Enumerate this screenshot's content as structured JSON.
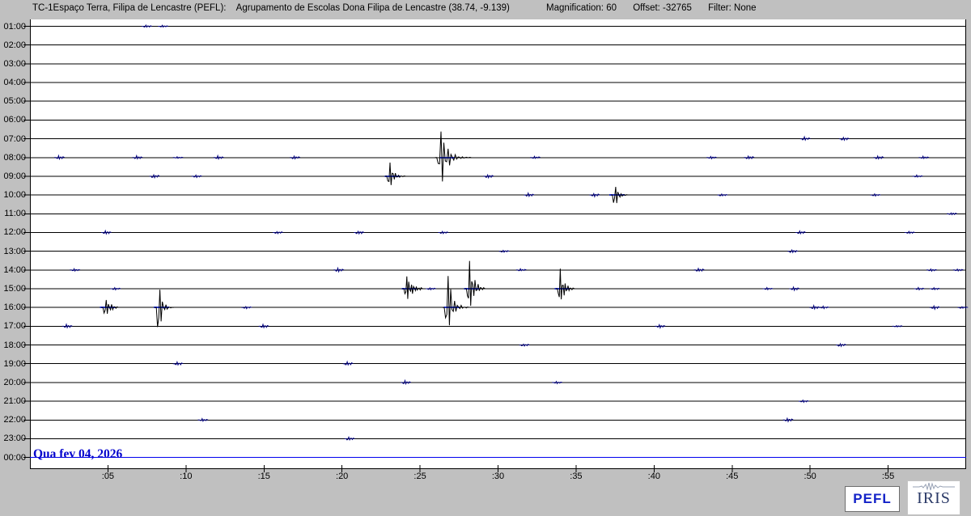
{
  "header": {
    "station": "TC-1Espaço Terra, Filipa de Lencastre (PEFL):",
    "location": "Agrupamento de Escolas Dona Filipa de Lencastre (38.74, -9.139)",
    "magnification": "Magnification: 60",
    "offset": "Offset: -32765",
    "filter": "Filter: None"
  },
  "footer": {
    "date": "Qua fev 04, 2026",
    "pefl": "PEFL",
    "iris": "IRIS"
  },
  "colors": {
    "background": "#c0c0c0",
    "plot_background": "#ffffff",
    "axis": "#000000",
    "trace": "#000000",
    "noise": "#000080",
    "active_row": "#0000ee",
    "event_marker": "#2233cc",
    "date_text": "#0000cc",
    "pefl_text": "#1322c8",
    "iris_text": "#2b3a67"
  },
  "chart_data": {
    "type": "helicorder",
    "minutes_per_row": 60,
    "hours": [
      "01:00",
      "02:00",
      "03:00",
      "04:00",
      "05:00",
      "06:00",
      "07:00",
      "08:00",
      "09:00",
      "10:00",
      "11:00",
      "12:00",
      "13:00",
      "14:00",
      "15:00",
      "16:00",
      "17:00",
      "18:00",
      "19:00",
      "20:00",
      "21:00",
      "22:00",
      "23:00",
      "00:00"
    ],
    "x_tick_labels": [
      ":05",
      ":10",
      ":15",
      ":20",
      ":25",
      ":30",
      ":35",
      ":40",
      ":45",
      ":50",
      ":55"
    ],
    "active_row_index": 23,
    "events": [
      {
        "hour": "08:00",
        "row": 7,
        "minute": 26.7,
        "duration_min": 2.1,
        "amp_up": 46,
        "amp_down": 44,
        "cycles": 9,
        "decay": 5.5,
        "marker": true
      },
      {
        "hour": "09:00",
        "row": 8,
        "minute": 23.2,
        "duration_min": 1.1,
        "amp_up": 25,
        "amp_down": 22,
        "cycles": 6,
        "decay": 4.5,
        "marker": true
      },
      {
        "hour": "10:00",
        "row": 9,
        "minute": 37.6,
        "duration_min": 0.9,
        "amp_up": 19,
        "amp_down": 23,
        "cycles": 5,
        "decay": 4.5,
        "marker": true
      },
      {
        "hour": "15:00",
        "row": 14,
        "minute": 24.3,
        "duration_min": 1.1,
        "amp_up": 21,
        "amp_down": 19,
        "cycles": 7,
        "decay": 3.2,
        "marker": true
      },
      {
        "hour": "15:00",
        "row": 14,
        "minute": 28.3,
        "duration_min": 1.1,
        "amp_up": 50,
        "amp_down": 34,
        "cycles": 6,
        "decay": 3.8,
        "marker": true
      },
      {
        "hour": "15:00",
        "row": 14,
        "minute": 34.1,
        "duration_min": 1.0,
        "amp_up": 31,
        "amp_down": 30,
        "cycles": 6,
        "decay": 3.8,
        "marker": true
      },
      {
        "hour": "16:00",
        "row": 15,
        "minute": 4.95,
        "duration_min": 0.9,
        "amp_up": 23,
        "amp_down": 21,
        "cycles": 5,
        "decay": 3.5,
        "marker": true
      },
      {
        "hour": "16:00",
        "row": 15,
        "minute": 8.4,
        "duration_min": 1.0,
        "amp_up": 63,
        "amp_down": 71,
        "cycles": 5,
        "decay": 6,
        "marker": true
      },
      {
        "hour": "16:00",
        "row": 15,
        "minute": 27.0,
        "duration_min": 1.5,
        "amp_up": 74,
        "amp_down": 50,
        "cycles": 7,
        "decay": 5.5,
        "marker": true
      }
    ],
    "noise": [
      {
        "row": 0,
        "minute": 7.4,
        "amp": 2
      },
      {
        "row": 0,
        "minute": 8.45,
        "amp": 1.5
      },
      {
        "row": 6,
        "minute": 49.6,
        "amp": 3
      },
      {
        "row": 6,
        "minute": 52.1,
        "amp": 3
      },
      {
        "row": 7,
        "minute": 1.8,
        "amp": 3
      },
      {
        "row": 7,
        "minute": 6.8,
        "amp": 3
      },
      {
        "row": 7,
        "minute": 9.4,
        "amp": 1.5
      },
      {
        "row": 7,
        "minute": 12.0,
        "amp": 3
      },
      {
        "row": 7,
        "minute": 16.9,
        "amp": 3
      },
      {
        "row": 7,
        "minute": 32.3,
        "amp": 2
      },
      {
        "row": 7,
        "minute": 43.6,
        "amp": 2
      },
      {
        "row": 7,
        "minute": 46.0,
        "amp": 3
      },
      {
        "row": 7,
        "minute": 54.3,
        "amp": 3
      },
      {
        "row": 7,
        "minute": 57.2,
        "amp": 2
      },
      {
        "row": 8,
        "minute": 7.9,
        "amp": 3
      },
      {
        "row": 8,
        "minute": 10.6,
        "amp": 2
      },
      {
        "row": 8,
        "minute": 29.3,
        "amp": 3
      },
      {
        "row": 8,
        "minute": 56.8,
        "amp": 2
      },
      {
        "row": 9,
        "minute": 31.9,
        "amp": 3
      },
      {
        "row": 9,
        "minute": 36.1,
        "amp": 3
      },
      {
        "row": 9,
        "minute": 44.3,
        "amp": 2
      },
      {
        "row": 9,
        "minute": 54.1,
        "amp": 2
      },
      {
        "row": 10,
        "minute": 59.0,
        "amp": 2
      },
      {
        "row": 11,
        "minute": 4.8,
        "amp": 3
      },
      {
        "row": 11,
        "minute": 15.8,
        "amp": 2
      },
      {
        "row": 11,
        "minute": 21.0,
        "amp": 3
      },
      {
        "row": 11,
        "minute": 26.4,
        "amp": 2
      },
      {
        "row": 11,
        "minute": 49.3,
        "amp": 3
      },
      {
        "row": 11,
        "minute": 56.3,
        "amp": 2
      },
      {
        "row": 12,
        "minute": 30.3,
        "amp": 2
      },
      {
        "row": 12,
        "minute": 48.8,
        "amp": 3
      },
      {
        "row": 13,
        "minute": 2.8,
        "amp": 2
      },
      {
        "row": 13,
        "minute": 19.7,
        "amp": 3
      },
      {
        "row": 13,
        "minute": 31.4,
        "amp": 2
      },
      {
        "row": 13,
        "minute": 42.8,
        "amp": 3
      },
      {
        "row": 13,
        "minute": 57.7,
        "amp": 2
      },
      {
        "row": 13,
        "minute": 59.4,
        "amp": 2
      },
      {
        "row": 14,
        "minute": 5.4,
        "amp": 2
      },
      {
        "row": 14,
        "minute": 25.6,
        "amp": 2
      },
      {
        "row": 14,
        "minute": 47.2,
        "amp": 2
      },
      {
        "row": 14,
        "minute": 48.9,
        "amp": 3
      },
      {
        "row": 14,
        "minute": 56.9,
        "amp": 2
      },
      {
        "row": 14,
        "minute": 57.9,
        "amp": 2
      },
      {
        "row": 15,
        "minute": 13.8,
        "amp": 2
      },
      {
        "row": 15,
        "minute": 50.2,
        "amp": 3
      },
      {
        "row": 15,
        "minute": 50.8,
        "amp": 2
      },
      {
        "row": 15,
        "minute": 57.9,
        "amp": 3
      },
      {
        "row": 15,
        "minute": 59.7,
        "amp": 2
      },
      {
        "row": 16,
        "minute": 2.3,
        "amp": 3
      },
      {
        "row": 16,
        "minute": 14.9,
        "amp": 3
      },
      {
        "row": 16,
        "minute": 40.3,
        "amp": 3
      },
      {
        "row": 16,
        "minute": 55.5,
        "amp": 1.5
      },
      {
        "row": 17,
        "minute": 31.6,
        "amp": 2
      },
      {
        "row": 17,
        "minute": 51.9,
        "amp": 3
      },
      {
        "row": 18,
        "minute": 9.4,
        "amp": 3
      },
      {
        "row": 18,
        "minute": 20.3,
        "amp": 3
      },
      {
        "row": 19,
        "minute": 24.0,
        "amp": 3
      },
      {
        "row": 19,
        "minute": 33.7,
        "amp": 2
      },
      {
        "row": 20,
        "minute": 49.5,
        "amp": 2
      },
      {
        "row": 21,
        "minute": 11.0,
        "amp": 2
      },
      {
        "row": 21,
        "minute": 48.5,
        "amp": 3
      },
      {
        "row": 22,
        "minute": 20.4,
        "amp": 3
      }
    ]
  }
}
